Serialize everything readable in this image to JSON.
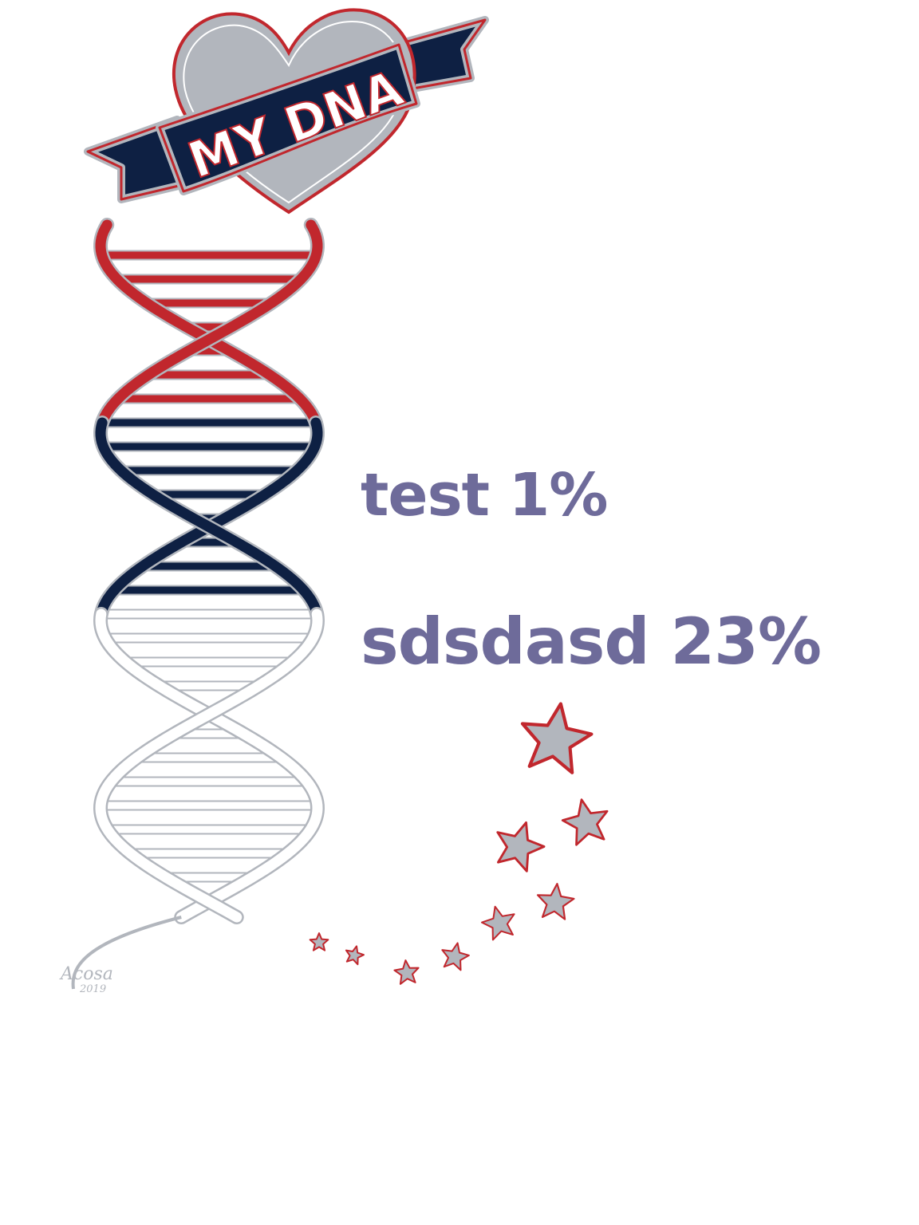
{
  "badge": {
    "text": "MY DNA"
  },
  "results": [
    {
      "label": "test",
      "percent": "1%"
    },
    {
      "label": "sdsdasd",
      "percent": "23%"
    }
  ],
  "signature": {
    "name": "Acosa",
    "year": "2019"
  },
  "colors": {
    "red": "#c1272d",
    "navy": "#0e2043",
    "gray": "#b2b6bd",
    "text": "#6e6b9a",
    "background": "#ffffff"
  },
  "icons": [
    "heart-icon",
    "ribbon-banner",
    "dna-helix",
    "star-icon"
  ]
}
